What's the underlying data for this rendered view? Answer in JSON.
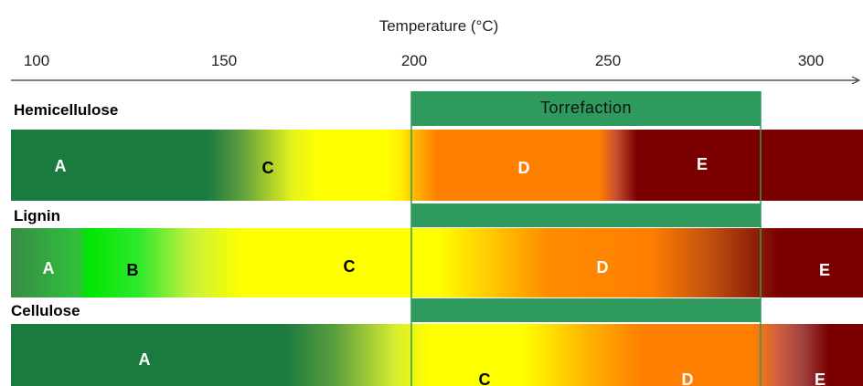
{
  "axis": {
    "title": "Temperature (°C)",
    "ticks": [
      {
        "value": 100,
        "label": "100"
      },
      {
        "value": 150,
        "label": "150"
      },
      {
        "value": 200,
        "label": "200"
      },
      {
        "value": 250,
        "label": "250"
      },
      {
        "value": 300,
        "label": "300"
      }
    ]
  },
  "torrefaction": {
    "label": "Torrefaction",
    "from": 200,
    "to": 286,
    "color": "#2e9a5e"
  },
  "rows": [
    {
      "name": "Hemicellulose",
      "bands": [
        {
          "letter": "A",
          "letter_at": 111,
          "letter_color": "#ffffff"
        },
        {
          "letter": "C",
          "letter_at": 162,
          "letter_color": "#000000"
        },
        {
          "letter": "D",
          "letter_at": 228,
          "letter_color": "#ffffff"
        },
        {
          "letter": "E",
          "letter_at": 270,
          "letter_color": "#ffffff"
        }
      ]
    },
    {
      "name": "Lignin",
      "bands": [
        {
          "letter": "A",
          "letter_at": 109,
          "letter_color": "#ffffff"
        },
        {
          "letter": "B",
          "letter_at": 121,
          "letter_color": "#000000"
        },
        {
          "letter": "C",
          "letter_at": 183,
          "letter_color": "#000000"
        },
        {
          "letter": "D",
          "letter_at": 247,
          "letter_color": "#ffffff"
        },
        {
          "letter": "E",
          "letter_at": 306,
          "letter_color": "#ffffff"
        }
      ]
    },
    {
      "name": "Cellulose",
      "bands": [
        {
          "letter": "A",
          "letter_at": 132,
          "letter_color": "#ffffff"
        },
        {
          "letter": "C",
          "letter_at": 219,
          "letter_color": "#000000"
        },
        {
          "letter": "D",
          "letter_at": 266,
          "letter_color": "#ffffff"
        },
        {
          "letter": "E",
          "letter_at": 299,
          "letter_color": "#ffffff"
        }
      ]
    }
  ],
  "colors": {
    "dark_green": "#1b7a3e",
    "bright_green": "#2ee82e",
    "yellow": "#ffff00",
    "orange": "#ff7f00",
    "dark_red": "#7a0000"
  }
}
